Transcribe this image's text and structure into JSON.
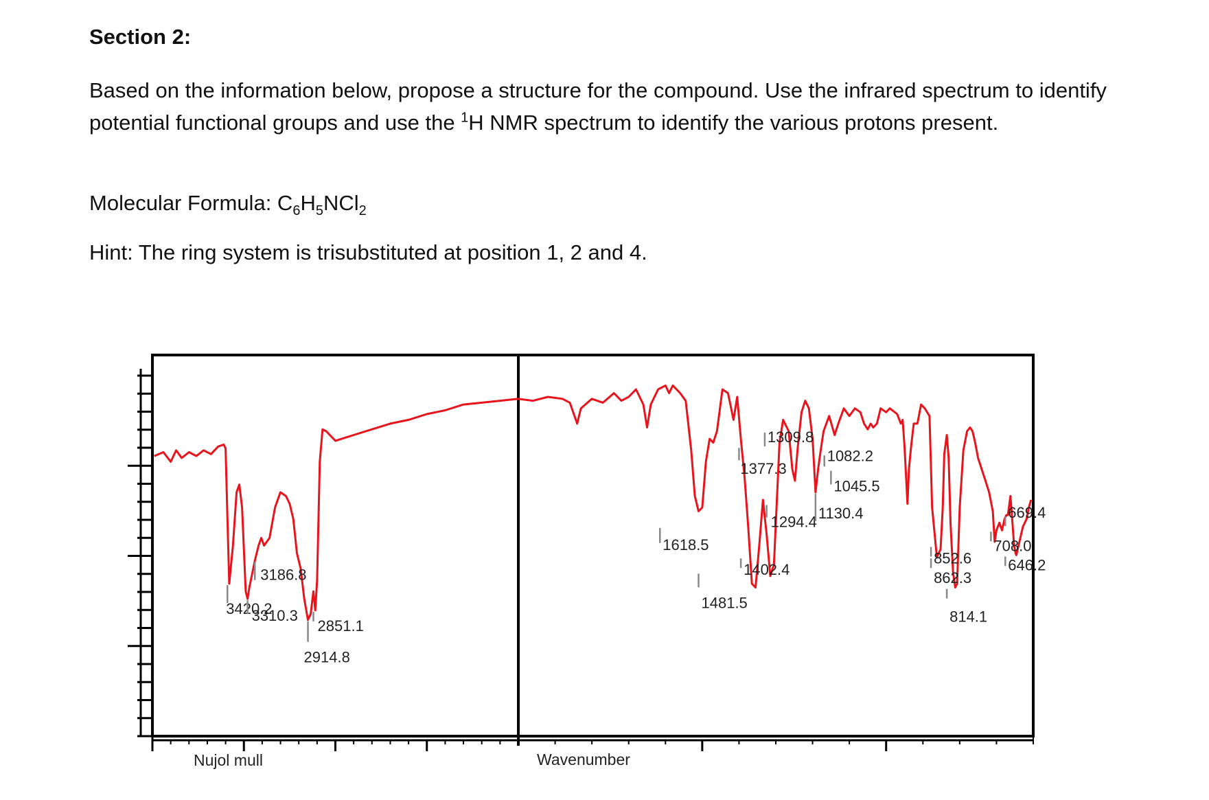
{
  "document": {
    "section_title": "Section 2:",
    "para_pre": "Based on the information below, propose a structure for the compound. Use the infrared spectrum to identify potential functional groups and use the ",
    "para_sup": "1",
    "para_post": "H NMR spectrum to identify the various protons present.",
    "formula_label": "Molecular Formula: ",
    "formula_parts": [
      "C",
      "6",
      "H",
      "5",
      "NCl",
      "2"
    ],
    "hint": "Hint: The ring system is trisubstituted at position 1, 2 and 4."
  },
  "chart_data": {
    "type": "line",
    "title": "",
    "xlabel": "Wavenumber",
    "sample_label": "Nujol mull",
    "x_axis_reversed": true,
    "x_segments": [
      {
        "from": 4000,
        "to": 2000
      },
      {
        "from": 2000,
        "to": 600
      }
    ],
    "ylabel": "",
    "ylim": [
      0,
      100
    ],
    "grid": false,
    "series": [
      {
        "name": "",
        "color": "#e8131b",
        "points": [
          [
            3990,
            73.5
          ],
          [
            3940,
            74.5
          ],
          [
            3900,
            72
          ],
          [
            3870,
            75
          ],
          [
            3840,
            73
          ],
          [
            3800,
            74.5
          ],
          [
            3760,
            73.5
          ],
          [
            3720,
            75
          ],
          [
            3680,
            74
          ],
          [
            3640,
            76
          ],
          [
            3610,
            76.5
          ],
          [
            3600,
            75.5
          ],
          [
            3590,
            57
          ],
          [
            3580,
            40
          ],
          [
            3560,
            50
          ],
          [
            3540,
            64
          ],
          [
            3525,
            66
          ],
          [
            3510,
            60
          ],
          [
            3490,
            38
          ],
          [
            3480,
            36
          ],
          [
            3470,
            39
          ],
          [
            3440,
            46
          ],
          [
            3420,
            50
          ],
          [
            3405,
            52
          ],
          [
            3390,
            50
          ],
          [
            3360,
            52
          ],
          [
            3330,
            60
          ],
          [
            3300,
            64
          ],
          [
            3270,
            63
          ],
          [
            3250,
            61
          ],
          [
            3230,
            57
          ],
          [
            3210,
            48
          ],
          [
            3190,
            44
          ],
          [
            3170,
            36
          ],
          [
            3150,
            30.5
          ],
          [
            3135,
            32
          ],
          [
            3120,
            38
          ],
          [
            3110,
            33
          ],
          [
            3100,
            41
          ],
          [
            3085,
            72
          ],
          [
            3070,
            80.5
          ],
          [
            3050,
            80
          ],
          [
            3000,
            77.5
          ],
          [
            2900,
            79
          ],
          [
            2800,
            80.5
          ],
          [
            2700,
            82
          ],
          [
            2600,
            83
          ],
          [
            2500,
            84.5
          ],
          [
            2400,
            85.5
          ],
          [
            2300,
            87
          ],
          [
            2200,
            87.5
          ],
          [
            2100,
            88
          ],
          [
            2000,
            88.5
          ],
          [
            1960,
            88
          ],
          [
            1920,
            89
          ],
          [
            1880,
            88.5
          ],
          [
            1860,
            87.5
          ],
          [
            1840,
            82
          ],
          [
            1830,
            86
          ],
          [
            1800,
            88.5
          ],
          [
            1770,
            87.5
          ],
          [
            1740,
            90
          ],
          [
            1720,
            88
          ],
          [
            1700,
            89
          ],
          [
            1680,
            91
          ],
          [
            1660,
            87
          ],
          [
            1650,
            81
          ],
          [
            1640,
            87
          ],
          [
            1620,
            91
          ],
          [
            1600,
            92
          ],
          [
            1590,
            90
          ],
          [
            1580,
            92
          ],
          [
            1560,
            90
          ],
          [
            1545,
            88
          ],
          [
            1530,
            75
          ],
          [
            1520,
            63
          ],
          [
            1510,
            59
          ],
          [
            1500,
            60
          ],
          [
            1490,
            72
          ],
          [
            1480,
            78
          ],
          [
            1470,
            77
          ],
          [
            1460,
            80
          ],
          [
            1445,
            91
          ],
          [
            1430,
            90
          ],
          [
            1415,
            83
          ],
          [
            1405,
            89
          ],
          [
            1395,
            78
          ],
          [
            1385,
            68
          ],
          [
            1375,
            55
          ],
          [
            1365,
            40
          ],
          [
            1355,
            39
          ],
          [
            1345,
            50
          ],
          [
            1335,
            62
          ],
          [
            1325,
            53
          ],
          [
            1315,
            42
          ],
          [
            1305,
            45
          ],
          [
            1290,
            77
          ],
          [
            1280,
            83
          ],
          [
            1265,
            80
          ],
          [
            1255,
            70
          ],
          [
            1248,
            67
          ],
          [
            1240,
            76
          ],
          [
            1230,
            85
          ],
          [
            1220,
            88
          ],
          [
            1210,
            86
          ],
          [
            1200,
            78
          ],
          [
            1192,
            64
          ],
          [
            1185,
            70
          ],
          [
            1178,
            75
          ],
          [
            1170,
            80
          ],
          [
            1155,
            84
          ],
          [
            1140,
            79
          ],
          [
            1130,
            82
          ],
          [
            1115,
            86
          ],
          [
            1100,
            84
          ],
          [
            1085,
            86
          ],
          [
            1070,
            85
          ],
          [
            1060,
            82
          ],
          [
            1050,
            80.5
          ],
          [
            1042,
            82
          ],
          [
            1035,
            81
          ],
          [
            1025,
            82
          ],
          [
            1015,
            86
          ],
          [
            1000,
            85
          ],
          [
            990,
            86
          ],
          [
            970,
            84.5
          ],
          [
            960,
            82
          ],
          [
            955,
            83
          ],
          [
            950,
            76
          ],
          [
            942,
            61
          ],
          [
            938,
            70
          ],
          [
            932,
            76
          ],
          [
            925,
            82
          ],
          [
            915,
            82
          ],
          [
            905,
            87
          ],
          [
            895,
            86
          ],
          [
            882,
            84
          ],
          [
            875,
            60
          ],
          [
            868,
            53
          ],
          [
            862,
            47
          ],
          [
            852,
            49
          ],
          [
            846,
            60
          ],
          [
            842,
            74
          ],
          [
            835,
            79
          ],
          [
            830,
            73
          ],
          [
            825,
            56
          ],
          [
            818,
            43
          ],
          [
            812,
            39
          ],
          [
            807,
            40
          ],
          [
            800,
            60
          ],
          [
            790,
            75
          ],
          [
            780,
            80
          ],
          [
            772,
            81
          ],
          [
            765,
            80
          ],
          [
            758,
            77
          ],
          [
            750,
            73
          ],
          [
            740,
            70
          ],
          [
            730,
            67
          ],
          [
            720,
            64
          ],
          [
            710,
            59
          ],
          [
            705,
            51
          ],
          [
            700,
            54
          ],
          [
            692,
            56
          ],
          [
            685,
            54
          ],
          [
            678,
            57
          ],
          [
            673,
            58
          ],
          [
            669,
            58
          ],
          [
            666,
            60
          ],
          [
            662,
            63
          ],
          [
            658,
            58
          ],
          [
            652,
            50
          ],
          [
            648,
            48
          ],
          [
            646,
            47.5
          ],
          [
            640,
            50
          ],
          [
            628,
            55
          ],
          [
            618,
            57
          ],
          [
            612,
            60
          ],
          [
            606,
            62
          ]
        ]
      }
    ],
    "peak_labels": [
      {
        "text": "3420.2",
        "x": 3590,
        "y": 40,
        "dx": -2,
        "dy": 16,
        "dir": "up",
        "color": "#888888",
        "len": 26
      },
      {
        "text": "3310.3",
        "x": 3480,
        "y": 36,
        "dx": 6,
        "dy": 10,
        "dir": "up",
        "color": "#888888",
        "len": 20
      },
      {
        "text": "3186.8",
        "x": 3440,
        "y": 46,
        "dx": 8,
        "dy": 0,
        "dir": "down",
        "color": "#888888",
        "len": 26
      },
      {
        "text": "2914.8",
        "x": 3150,
        "y": 30.5,
        "dx": -6,
        "dy": 30,
        "dir": "down",
        "color": "#888888",
        "len": 30
      },
      {
        "text": "2851.1",
        "x": 3120,
        "y": 33,
        "dx": 6,
        "dy": 14,
        "dir": "down",
        "color": "#888888",
        "len": 14
      },
      {
        "text": "1618.5",
        "x": 1615,
        "y": 55,
        "dx": 4,
        "dy": 10,
        "dir": "down",
        "color": "#888888",
        "len": 22
      },
      {
        "text": "1481.5",
        "x": 1510,
        "y": 43,
        "dx": 4,
        "dy": 30,
        "dir": "down",
        "color": "#888888",
        "len": 20
      },
      {
        "text": "1402.4",
        "x": 1395,
        "y": 47,
        "dx": 4,
        "dy": 10,
        "dir": "down",
        "color": "#888888",
        "len": 14
      },
      {
        "text": "1377.3",
        "x": 1400,
        "y": 76,
        "dx": 2,
        "dy": 20,
        "dir": "down",
        "color": "#888888",
        "len": 18
      },
      {
        "text": "1309.8",
        "x": 1330,
        "y": 80,
        "dx": 4,
        "dy": -6,
        "dir": "down",
        "color": "#888888",
        "len": 20
      },
      {
        "text": "1294.4",
        "x": 1325,
        "y": 61,
        "dx": 6,
        "dy": 14,
        "dir": "down",
        "color": "#888888",
        "len": 18
      },
      {
        "text": "1130.4",
        "x": 1192,
        "y": 64,
        "dx": 4,
        "dy": -4,
        "dir": "down",
        "color": "#888888",
        "len": 40
      },
      {
        "text": "1082.2",
        "x": 1168,
        "y": 74,
        "dx": 4,
        "dy": -8,
        "dir": "down",
        "color": "#888888",
        "len": 16
      },
      {
        "text": "1045.5",
        "x": 1150,
        "y": 70,
        "dx": 4,
        "dy": 10,
        "dir": "down",
        "color": "#888888",
        "len": 20
      },
      {
        "text": "852.6",
        "x": 878,
        "y": 50,
        "dx": 4,
        "dy": 10,
        "dir": "down",
        "color": "#888888",
        "len": 14
      },
      {
        "text": "862.3",
        "x": 878,
        "y": 47,
        "dx": 4,
        "dy": 22,
        "dir": "down",
        "color": "#888888",
        "len": 14
      },
      {
        "text": "814.1",
        "x": 835,
        "y": 39,
        "dx": 4,
        "dy": 34,
        "dir": "down",
        "color": "#888888",
        "len": 14
      },
      {
        "text": "708.0",
        "x": 715,
        "y": 54,
        "dx": 4,
        "dy": 14,
        "dir": "down",
        "color": "#888888",
        "len": 14
      },
      {
        "text": "669.4",
        "x": 676,
        "y": 58,
        "dx": 4,
        "dy": -12,
        "dir": "down",
        "color": "#888888",
        "len": 14
      },
      {
        "text": "646.2",
        "x": 676,
        "y": 47.5,
        "dx": 4,
        "dy": 6,
        "dir": "down",
        "color": "#888888",
        "len": 14
      }
    ],
    "y_ticks_count": 20
  }
}
